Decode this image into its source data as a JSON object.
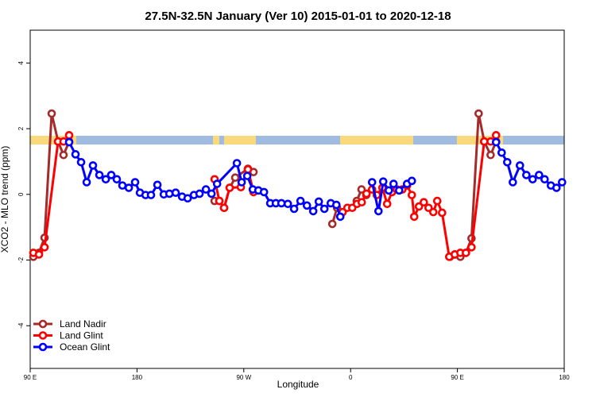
{
  "chart_data": {
    "type": "line",
    "title": "27.5N-32.5N January (Ver 10)   2015-01-01 to 2020-12-18",
    "x_label": "Longitude",
    "y_label": "XCO2 - MLO trend (ppm)",
    "xlim": [
      90,
      540
    ],
    "ylim": [
      -5.3,
      5.0
    ],
    "xticks": [
      {
        "value": 90,
        "label": "90 E"
      },
      180,
      {
        "value": 270,
        "label": "90 W"
      },
      {
        "value": 360,
        "label": "0"
      },
      {
        "value": 450,
        "label": "90 E"
      },
      {
        "value": 540,
        "label": "180"
      }
    ],
    "yticks": [
      -4,
      -2,
      0,
      2,
      4
    ],
    "legend": "bottom-left",
    "series": [
      {
        "name": "Land Nadir",
        "color": "#a52a2a",
        "x": [
          92.7,
          97.4,
          102.1,
          108.1,
          113.5,
          118.1,
          122.8,
          null,
          245.4,
          249.4,
          253.4,
          258.1,
          262.8,
          273.5,
          278.2,
          null,
          344.6,
          348.6,
          null,
          365.2,
          369.2,
          373.2,
          null,
          443.8,
          447.8,
          452.5,
          457.2,
          461.9,
          467.9,
          472.6,
          478.0,
          482.6
        ],
        "values": [
          -1.9,
          -1.78,
          -1.32,
          2.46,
          1.61,
          1.2,
          1.61,
          null,
          -0.2,
          -0.2,
          -0.41,
          0.2,
          0.51,
          0.78,
          0.68,
          null,
          -0.9,
          -0.41,
          null,
          -0.2,
          0.15,
          -0.02,
          null,
          -1.9,
          -1.83,
          -1.9,
          -1.78,
          -1.34,
          2.46,
          1.61,
          1.2,
          1.61
        ]
      },
      {
        "name": "Land Glint",
        "color": "#ff0000",
        "x": [
          92.7,
          97.4,
          102.1,
          113.5,
          118.1,
          122.8,
          null,
          245.4,
          249.4,
          253.4,
          258.1,
          267.5,
          273.5,
          278.2,
          null,
          353.3,
          357.3,
          361.4,
          365.4,
          369.4,
          373.4,
          378.1,
          382.1,
          386.8,
          390.8,
          394.9,
          398.9,
          403.6,
          407.6,
          411.6,
          413.6,
          417.6,
          421.7,
          425.7,
          429.7,
          433.0,
          437.1,
          443.1,
          447.8,
          452.5,
          457.2,
          461.9,
          472.6,
          478.0,
          482.6
        ],
        "values": [
          -1.78,
          -1.83,
          -1.61,
          1.61,
          1.61,
          1.8,
          null,
          0.46,
          -0.2,
          -0.41,
          0.2,
          0.22,
          0.76,
          0.07,
          null,
          -0.54,
          -0.41,
          -0.41,
          -0.29,
          -0.24,
          0.02,
          0.15,
          -0.02,
          0.2,
          -0.29,
          0.07,
          0.15,
          0.15,
          0.27,
          -0.02,
          -0.68,
          -0.37,
          -0.24,
          -0.41,
          -0.54,
          -0.2,
          -0.56,
          -1.9,
          -1.83,
          -1.78,
          -1.78,
          -1.61,
          1.61,
          1.61,
          1.8
        ]
      },
      {
        "name": "Ocean Glint",
        "color": "#0000ff",
        "x": [
          122.8,
          128.2,
          132.9,
          137.6,
          142.9,
          148.3,
          153.7,
          158.3,
          163.0,
          167.7,
          173.1,
          178.4,
          182.5,
          187.2,
          191.8,
          197.2,
          202.6,
          207.3,
          212.6,
          218.0,
          222.7,
          228.0,
          232.7,
          238.1,
          242.8,
          247.5,
          264.2,
          268.2,
          272.9,
          277.6,
          282.3,
          287.0,
          292.3,
          297.0,
          301.7,
          307.1,
          312.4,
          317.8,
          323.2,
          328.5,
          333.2,
          337.9,
          343.3,
          348.0,
          351.3,
          null,
          378.1,
          383.5,
          387.5,
          392.2,
          396.2,
          400.9,
          407.6,
          411.6,
          null,
          482.6,
          487.3,
          492.0,
          496.7,
          502.7,
          508.1,
          513.4,
          518.8,
          523.5,
          528.8,
          533.5,
          538.2
        ],
        "values": [
          1.59,
          1.22,
          0.98,
          0.37,
          0.88,
          0.59,
          0.46,
          0.59,
          0.46,
          0.27,
          0.2,
          0.37,
          0.05,
          -0.02,
          -0.02,
          0.29,
          0.0,
          0.02,
          0.05,
          -0.07,
          -0.12,
          -0.02,
          0.02,
          0.15,
          0.02,
          0.32,
          0.95,
          0.37,
          0.56,
          0.15,
          0.12,
          0.07,
          -0.27,
          -0.27,
          -0.27,
          -0.29,
          -0.44,
          -0.2,
          -0.34,
          -0.51,
          -0.22,
          -0.44,
          -0.27,
          -0.32,
          -0.68,
          null,
          0.37,
          -0.51,
          0.39,
          0.12,
          0.32,
          0.12,
          0.32,
          0.41,
          null,
          1.59,
          1.27,
          0.98,
          0.37,
          0.88,
          0.59,
          0.46,
          0.59,
          0.46,
          0.27,
          0.2,
          0.37
        ]
      }
    ]
  }
}
